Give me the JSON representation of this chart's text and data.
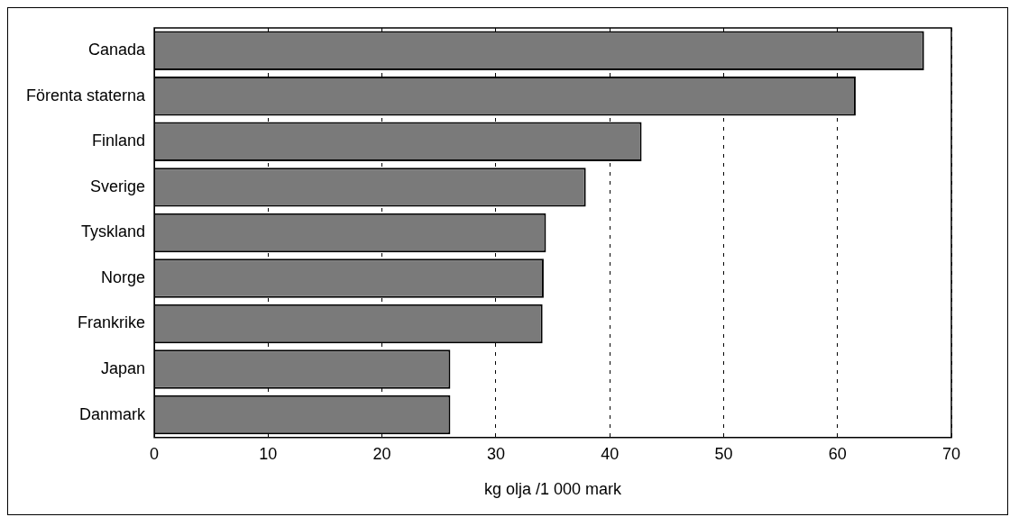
{
  "chart_data": {
    "type": "bar",
    "orientation": "horizontal",
    "xlabel": "kg olja /1 000 mark",
    "categories": [
      "Canada",
      "Förenta staterna",
      "Finland",
      "Sverige",
      "Tyskland",
      "Norge",
      "Frankrike",
      "Japan",
      "Danmark"
    ],
    "values": [
      67.6,
      61.6,
      42.8,
      37.9,
      34.4,
      34.2,
      34.1,
      26.0,
      26.0
    ],
    "color": "#7a7a7a",
    "xlim": [
      0,
      70
    ],
    "xticks": [
      0,
      10,
      20,
      30,
      40,
      50,
      60,
      70
    ],
    "grid": "x",
    "line_style": "dashed",
    "legend": false
  }
}
